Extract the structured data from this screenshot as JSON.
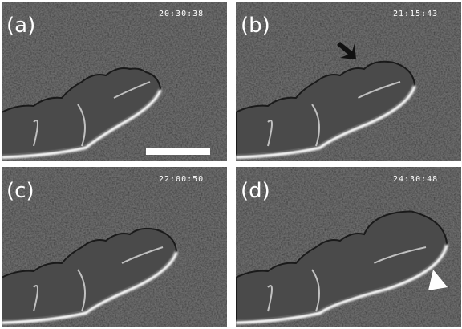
{
  "panels": [
    {
      "label": "(a)",
      "timestamp": "20:30:38"
    },
    {
      "label": "(b)",
      "timestamp": "21:15:43"
    },
    {
      "label": "(c)",
      "timestamp": "22:00:50"
    },
    {
      "label": "(d)",
      "timestamp": "24:30:48"
    }
  ]
}
